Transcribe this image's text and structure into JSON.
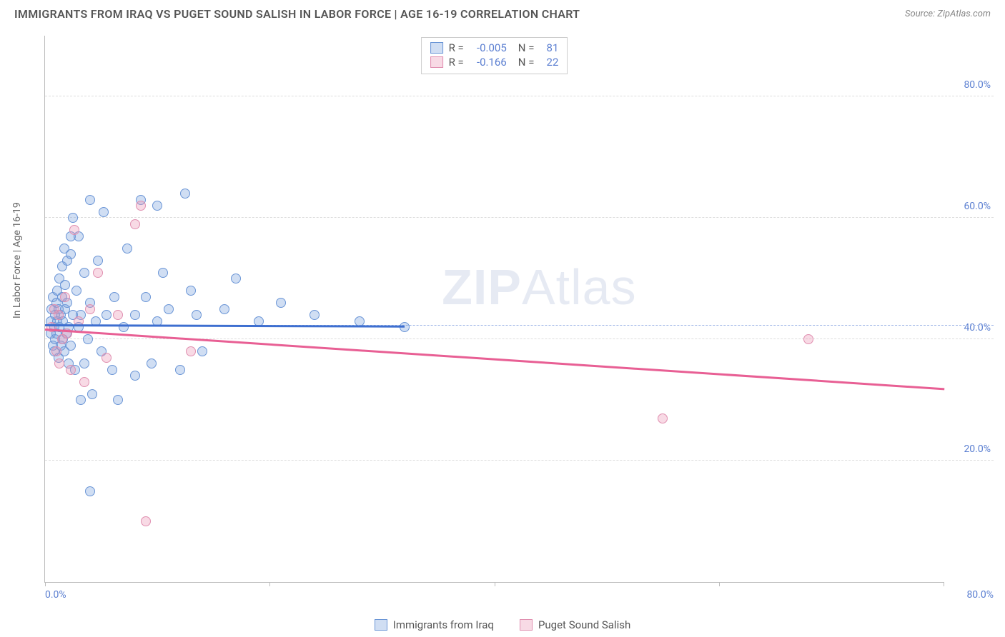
{
  "header": {
    "title": "IMMIGRANTS FROM IRAQ VS PUGET SOUND SALISH IN LABOR FORCE | AGE 16-19 CORRELATION CHART",
    "source_label": "Source: ZipAtlas.com"
  },
  "watermark": {
    "bold": "ZIP",
    "light": "Atlas"
  },
  "chart": {
    "type": "scatter",
    "y_axis_label": "In Labor Force | Age 16-19",
    "x_range": [
      0,
      80
    ],
    "y_range": [
      0,
      90
    ],
    "y_ticks": [
      20,
      40,
      60,
      80
    ],
    "y_tick_labels": [
      "20.0%",
      "40.0%",
      "60.0%",
      "80.0%"
    ],
    "x_ticks": [
      0,
      20,
      40,
      60,
      80
    ],
    "x_tick_left_label": "0.0%",
    "x_tick_right_label": "80.0%",
    "avg_dash_y": 42.2,
    "background_color": "#ffffff",
    "grid_color": "#dddddd",
    "axis_color": "#bbbbbb",
    "tick_label_color": "#5b7fd1",
    "dot_radius": 7,
    "dot_stroke_width": 1.3,
    "series": [
      {
        "key": "iraq",
        "label": "Immigrants from Iraq",
        "fill": "rgba(120,160,220,0.35)",
        "stroke": "#6a95d6",
        "line_color": "#3e6fd0",
        "R": "-0.005",
        "N": "81",
        "trend": {
          "x1": 0,
          "y1": 42.5,
          "x2": 32,
          "y2": 42.3
        },
        "points": [
          [
            0.5,
            43
          ],
          [
            0.5,
            41
          ],
          [
            0.6,
            45
          ],
          [
            0.7,
            39
          ],
          [
            0.7,
            47
          ],
          [
            0.8,
            42
          ],
          [
            0.8,
            38
          ],
          [
            0.9,
            44
          ],
          [
            0.9,
            40
          ],
          [
            1.0,
            46
          ],
          [
            1.0,
            41
          ],
          [
            1.1,
            43
          ],
          [
            1.1,
            48
          ],
          [
            1.2,
            37
          ],
          [
            1.2,
            45
          ],
          [
            1.3,
            42
          ],
          [
            1.3,
            50
          ],
          [
            1.4,
            39
          ],
          [
            1.4,
            44
          ],
          [
            1.5,
            47
          ],
          [
            1.5,
            52
          ],
          [
            1.6,
            40
          ],
          [
            1.6,
            43
          ],
          [
            1.7,
            55
          ],
          [
            1.7,
            38
          ],
          [
            1.8,
            45
          ],
          [
            1.8,
            49
          ],
          [
            1.9,
            41
          ],
          [
            2.0,
            46
          ],
          [
            2.0,
            53
          ],
          [
            2.1,
            36
          ],
          [
            2.1,
            42
          ],
          [
            2.3,
            54
          ],
          [
            2.3,
            57
          ],
          [
            2.3,
            39
          ],
          [
            2.5,
            44
          ],
          [
            2.5,
            60
          ],
          [
            2.7,
            35
          ],
          [
            2.8,
            48
          ],
          [
            3.0,
            42
          ],
          [
            3.0,
            57
          ],
          [
            3.2,
            30
          ],
          [
            3.2,
            44
          ],
          [
            3.5,
            51
          ],
          [
            3.5,
            36
          ],
          [
            3.8,
            40
          ],
          [
            4.0,
            63
          ],
          [
            4.0,
            46
          ],
          [
            4.2,
            31
          ],
          [
            4.5,
            43
          ],
          [
            4.7,
            53
          ],
          [
            5.0,
            38
          ],
          [
            5.2,
            61
          ],
          [
            5.5,
            44
          ],
          [
            6.0,
            35
          ],
          [
            6.2,
            47
          ],
          [
            6.5,
            30
          ],
          [
            7.0,
            42
          ],
          [
            7.3,
            55
          ],
          [
            8.0,
            44
          ],
          [
            8.0,
            34
          ],
          [
            8.5,
            63
          ],
          [
            9.0,
            47
          ],
          [
            9.5,
            36
          ],
          [
            10.0,
            43
          ],
          [
            10.0,
            62
          ],
          [
            10.5,
            51
          ],
          [
            11.0,
            45
          ],
          [
            12.0,
            35
          ],
          [
            12.5,
            64
          ],
          [
            13.0,
            48
          ],
          [
            13.5,
            44
          ],
          [
            14.0,
            38
          ],
          [
            16.0,
            45
          ],
          [
            17.0,
            50
          ],
          [
            19.0,
            43
          ],
          [
            21.0,
            46
          ],
          [
            24.0,
            44
          ],
          [
            28.0,
            43
          ],
          [
            32.0,
            42
          ],
          [
            4.0,
            15
          ]
        ]
      },
      {
        "key": "salish",
        "label": "Puget Sound Salish",
        "fill": "rgba(235,150,180,0.35)",
        "stroke": "#e08fb0",
        "line_color": "#e85f94",
        "R": "-0.166",
        "N": "22",
        "trend": {
          "x1": 0,
          "y1": 41.8,
          "x2": 80,
          "y2": 32.0
        },
        "points": [
          [
            0.6,
            42
          ],
          [
            0.8,
            45
          ],
          [
            1.0,
            38
          ],
          [
            1.2,
            44
          ],
          [
            1.3,
            36
          ],
          [
            1.5,
            40
          ],
          [
            1.8,
            47
          ],
          [
            2.0,
            41
          ],
          [
            2.3,
            35
          ],
          [
            2.6,
            58
          ],
          [
            3.0,
            43
          ],
          [
            3.5,
            33
          ],
          [
            4.0,
            45
          ],
          [
            4.7,
            51
          ],
          [
            5.5,
            37
          ],
          [
            6.5,
            44
          ],
          [
            8.0,
            59
          ],
          [
            8.5,
            62
          ],
          [
            9.0,
            10
          ],
          [
            13.0,
            38
          ],
          [
            55.0,
            27
          ],
          [
            68.0,
            40
          ]
        ]
      }
    ]
  },
  "legend_top": {
    "rows": [
      {
        "swatch_fill": "rgba(120,160,220,0.35)",
        "swatch_stroke": "#6a95d6",
        "r_label": "R =",
        "r_val": "-0.005",
        "n_label": "N =",
        "n_val": "81"
      },
      {
        "swatch_fill": "rgba(235,150,180,0.35)",
        "swatch_stroke": "#e08fb0",
        "r_label": "R =",
        "r_val": "-0.166",
        "n_label": "N =",
        "n_val": "22"
      }
    ]
  },
  "legend_bottom": {
    "items": [
      {
        "swatch_fill": "rgba(120,160,220,0.35)",
        "swatch_stroke": "#6a95d6",
        "label": "Immigrants from Iraq"
      },
      {
        "swatch_fill": "rgba(235,150,180,0.35)",
        "swatch_stroke": "#e08fb0",
        "label": "Puget Sound Salish"
      }
    ]
  }
}
